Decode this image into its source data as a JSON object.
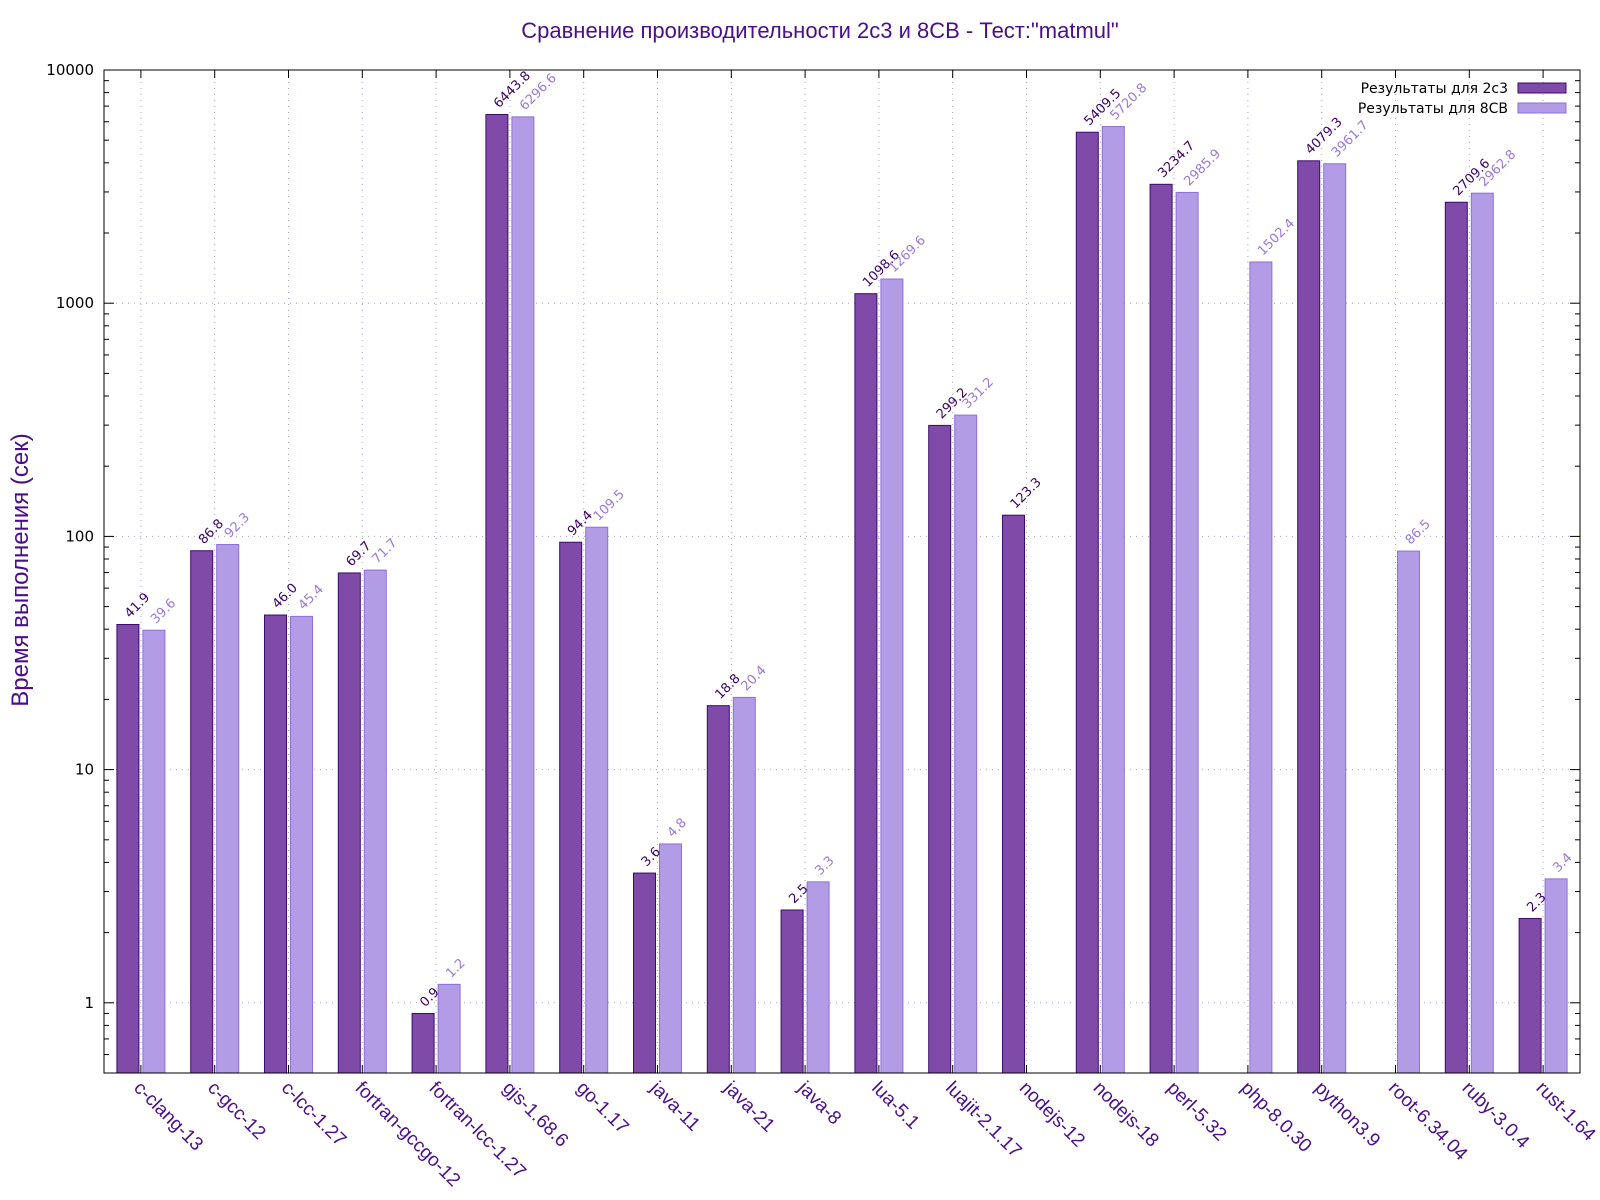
{
  "chart_data": {
    "type": "bar",
    "title": "Сравнение производительности 2с3 и 8СВ - Тест:\"matmul\"",
    "ylabel": "Время выполнения (сек)",
    "xlabel": "",
    "yscale": "log",
    "ylim": [
      0.5,
      10000
    ],
    "yticks": [
      1,
      10,
      100,
      1000,
      10000
    ],
    "grid": true,
    "legend_position": "top-right",
    "categories": [
      "c-clang-13",
      "c-gcc-12",
      "c-lcc-1.27",
      "fortran-gccgo-12",
      "fortran-lcc-1.27",
      "gjs-1.68.6",
      "go-1.17",
      "java-11",
      "java-21",
      "java-8",
      "lua-5.1",
      "luajit-2.1.17",
      "nodejs-12",
      "nodejs-18",
      "perl-5.32",
      "php-8.0.30",
      "python3.9",
      "root-6.34.04",
      "ruby-3.0.4",
      "rust-1.64"
    ],
    "series": [
      {
        "name": "Результаты для 2с3",
        "color": "#7f4aa8",
        "values": [
          41.9,
          86.8,
          46.0,
          69.7,
          0.9,
          6443.8,
          94.4,
          3.6,
          18.8,
          2.5,
          1098.6,
          299.2,
          123.3,
          5409.5,
          3234.7,
          null,
          4079.3,
          null,
          2709.6,
          2.3
        ],
        "labels": [
          "41.9",
          "86.8",
          "46.0",
          "69.7",
          "0.9",
          "6443.8",
          "94.4",
          "3.6",
          "18.8",
          "2.5",
          "1098.6",
          "299.2",
          "123.3",
          "5409.5",
          "3234.7",
          "",
          "4079.3",
          "",
          "2709.6",
          "2.3"
        ]
      },
      {
        "name": "Результаты для 8СВ",
        "color": "#b29ce6",
        "values": [
          39.6,
          92.3,
          45.4,
          71.7,
          1.2,
          6296.6,
          109.5,
          4.8,
          20.4,
          3.3,
          1269.6,
          331.2,
          null,
          5720.8,
          2985.9,
          1502.4,
          3961.7,
          86.5,
          2962.8,
          3.4
        ],
        "labels": [
          "39.6",
          "92.3",
          "45.4",
          "71.7",
          "1.2",
          "6296.6",
          "109.5",
          "4.8",
          "20.4",
          "3.3",
          "1269.6",
          "331.2",
          "",
          "5720.8",
          "2985.9",
          "1502.4",
          "3961.7",
          "86.5",
          "2962.8",
          "3.4"
        ]
      }
    ]
  }
}
